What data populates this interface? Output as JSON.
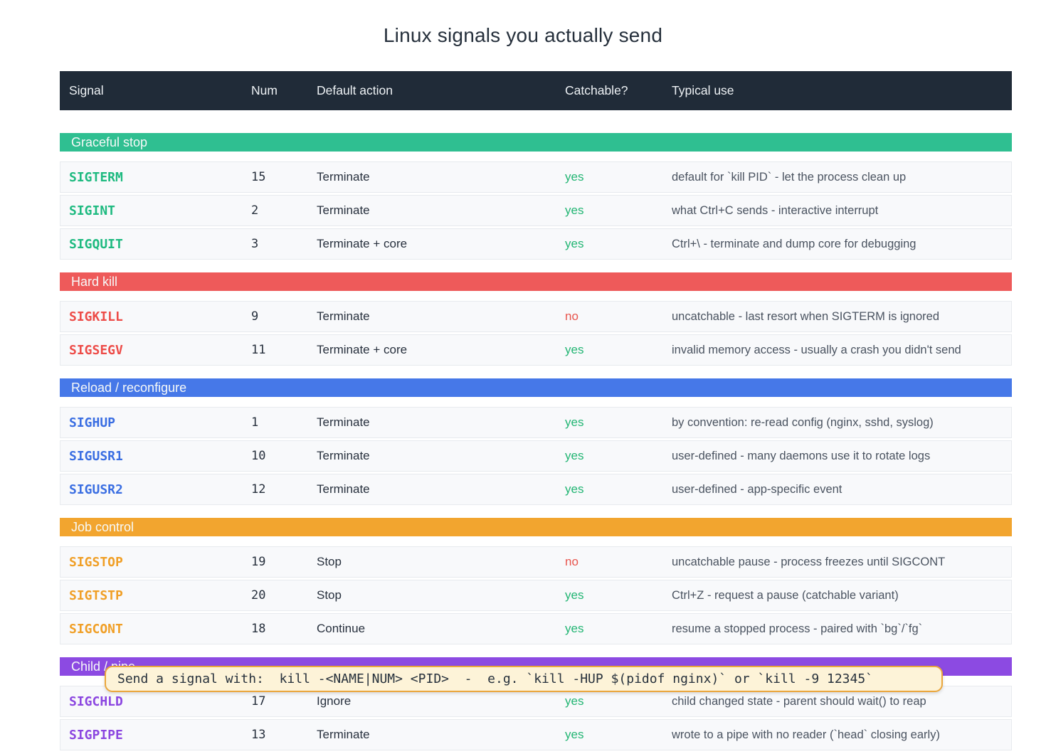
{
  "title": "Linux signals you actually send",
  "columns": {
    "signal": "Signal",
    "num": "Num",
    "action": "Default action",
    "catchable": "Catchable?",
    "use": "Typical use"
  },
  "colors": {
    "header_bg": "#202b38",
    "row_bg": "#f8f9fb",
    "yes": "#22b573",
    "no": "#e8554d",
    "graceful": "#2fbf91",
    "hard": "#ee5a5a",
    "reload": "#4678e8",
    "job": "#f2a52f",
    "child": "#8c4ae2",
    "tooltip_bg": "#fdf3d8",
    "tooltip_border": "#eaa63c"
  },
  "tooltip": {
    "text": "Send a signal with:  kill -<NAME|NUM> <PID>  -  e.g. `kill -HUP $(pidof nginx)` or `kill -9 12345`"
  },
  "sections": [
    {
      "name": "Graceful stop",
      "rows": [
        {
          "signal": "SIGTERM",
          "num": "15",
          "action": "Terminate",
          "catchable": "yes",
          "use": "default for `kill PID` - let the process clean up"
        },
        {
          "signal": "SIGINT",
          "num": "2",
          "action": "Terminate",
          "catchable": "yes",
          "use": "what Ctrl+C sends - interactive interrupt"
        },
        {
          "signal": "SIGQUIT",
          "num": "3",
          "action": "Terminate + core",
          "catchable": "yes",
          "use": "Ctrl+\\ - terminate and dump core for debugging"
        }
      ]
    },
    {
      "name": "Hard kill",
      "rows": [
        {
          "signal": "SIGKILL",
          "num": "9",
          "action": "Terminate",
          "catchable": "no",
          "use": "uncatchable - last resort when SIGTERM is ignored"
        },
        {
          "signal": "SIGSEGV",
          "num": "11",
          "action": "Terminate + core",
          "catchable": "yes",
          "use": "invalid memory access - usually a crash you didn't send"
        }
      ]
    },
    {
      "name": "Reload / reconfigure",
      "rows": [
        {
          "signal": "SIGHUP",
          "num": "1",
          "action": "Terminate",
          "catchable": "yes",
          "use": "by convention: re-read config (nginx, sshd, syslog)"
        },
        {
          "signal": "SIGUSR1",
          "num": "10",
          "action": "Terminate",
          "catchable": "yes",
          "use": "user-defined - many daemons use it to rotate logs"
        },
        {
          "signal": "SIGUSR2",
          "num": "12",
          "action": "Terminate",
          "catchable": "yes",
          "use": "user-defined - app-specific event"
        }
      ]
    },
    {
      "name": "Job control",
      "rows": [
        {
          "signal": "SIGSTOP",
          "num": "19",
          "action": "Stop",
          "catchable": "no",
          "use": "uncatchable pause - process freezes until SIGCONT"
        },
        {
          "signal": "SIGTSTP",
          "num": "20",
          "action": "Stop",
          "catchable": "yes",
          "use": "Ctrl+Z - request a pause (catchable variant)"
        },
        {
          "signal": "SIGCONT",
          "num": "18",
          "action": "Continue",
          "catchable": "yes",
          "use": "resume a stopped process - paired with `bg`/`fg`"
        }
      ]
    },
    {
      "name": "Child / pipe",
      "rows": [
        {
          "signal": "SIGCHLD",
          "num": "17",
          "action": "Ignore",
          "catchable": "yes",
          "use": "child changed state - parent should wait() to reap"
        },
        {
          "signal": "SIGPIPE",
          "num": "13",
          "action": "Terminate",
          "catchable": "yes",
          "use": "wrote to a pipe with no reader (`head` closing early)"
        }
      ]
    }
  ]
}
